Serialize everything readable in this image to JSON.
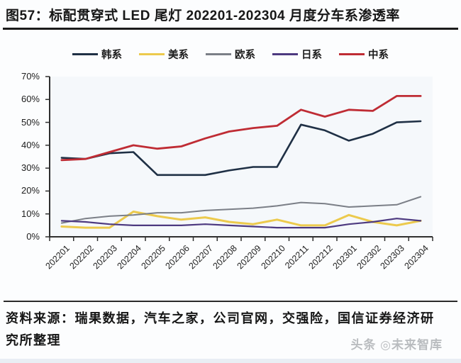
{
  "title": "图57：标配贯穿式 LED 尾灯 202201-202304 月度分车系渗透率",
  "source_note": "资料来源：瑞果数据，汽车之家，公司官网，交强险，国信证券经济研究所整理",
  "watermark": "头条 ◎未来智库",
  "colors": {
    "korean": "#1f3045",
    "american": "#ecca4d",
    "european": "#7b7f87",
    "japanese": "#4d3a80",
    "chinese": "#bf2c34",
    "axis": "#2f2f2f",
    "plot_background": "#f5f8fb"
  },
  "chart_data": {
    "type": "line",
    "title": "图57：标配贯穿式 LED 尾灯 202201-202304 月度分车系渗透率",
    "xlabel": "",
    "ylabel": "",
    "ylim": [
      0,
      70
    ],
    "grid": false,
    "legend_position": "top",
    "y_ticks": [
      "0%",
      "10%",
      "20%",
      "30%",
      "40%",
      "50%",
      "60%",
      "70%"
    ],
    "categories": [
      "202201",
      "202202",
      "202203",
      "202204",
      "202205",
      "202206",
      "202207",
      "202208",
      "202209",
      "202210",
      "202211",
      "202212",
      "202301",
      "202302",
      "202303",
      "202304"
    ],
    "series": [
      {
        "name": "韩系",
        "color": "#1f3045",
        "values": [
          34.5,
          34,
          36.5,
          37,
          27,
          27,
          27,
          29,
          30.5,
          30.5,
          49,
          46.5,
          42,
          45,
          50,
          50.5
        ]
      },
      {
        "name": "美系",
        "color": "#ecca4d",
        "values": [
          4.5,
          4,
          4,
          11,
          9,
          7.5,
          8.5,
          6.5,
          5.5,
          7.5,
          5,
          5,
          9.5,
          6.5,
          5,
          7
        ]
      },
      {
        "name": "欧系",
        "color": "#7b7f87",
        "values": [
          6,
          8,
          9,
          9.5,
          10.5,
          10.5,
          11.5,
          12,
          12.5,
          13.5,
          15,
          14.5,
          13,
          13.5,
          14,
          17.5
        ]
      },
      {
        "name": "日系",
        "color": "#4d3a80",
        "values": [
          7,
          6.5,
          5.5,
          5,
          5,
          5,
          5.5,
          5,
          4.5,
          4,
          4,
          4,
          5.5,
          6.5,
          8,
          7
        ]
      },
      {
        "name": "中系",
        "color": "#bf2c34",
        "values": [
          33.5,
          34,
          37,
          40,
          38.5,
          39.5,
          43,
          46,
          47.5,
          48.5,
          55.5,
          52.5,
          55.5,
          55,
          61.5,
          61.5
        ]
      }
    ]
  }
}
